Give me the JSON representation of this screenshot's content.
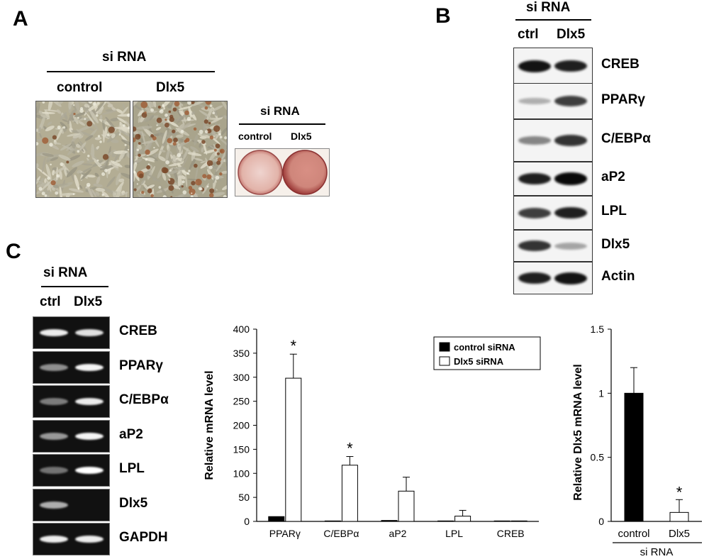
{
  "panel_a": {
    "letter": "A",
    "sirna_label": "si RNA",
    "col_control": "control",
    "col_dlx5": "Dlx5",
    "stain": {
      "sirna_label": "si RNA",
      "col_control": "control",
      "col_dlx5": "Dlx5"
    }
  },
  "panel_b": {
    "letter": "B",
    "sirna_label": "si RNA",
    "col_ctrl": "ctrl",
    "col_dlx5": "Dlx5",
    "rows": [
      {
        "label": "CREB",
        "ctrl": 0.9,
        "dlx5": 0.85
      },
      {
        "label": "PPARγ",
        "ctrl": 0.15,
        "dlx5": 0.7
      },
      {
        "label": "C/EBPα",
        "ctrl": 0.35,
        "dlx5": 0.75
      },
      {
        "label": "aP2",
        "ctrl": 0.85,
        "dlx5": 0.95
      },
      {
        "label": "LPL",
        "ctrl": 0.7,
        "dlx5": 0.85
      },
      {
        "label": "Dlx5",
        "ctrl": 0.75,
        "dlx5": 0.2
      },
      {
        "label": "Actin",
        "ctrl": 0.85,
        "dlx5": 0.9
      }
    ]
  },
  "panel_c": {
    "letter": "C",
    "sirna_label": "si RNA",
    "col_ctrl": "ctrl",
    "col_dlx5": "Dlx5",
    "gel_rows": [
      {
        "label": "CREB",
        "ctrl": 0.9,
        "dlx5": 0.85
      },
      {
        "label": "PPARγ",
        "ctrl": 0.45,
        "dlx5": 0.95
      },
      {
        "label": "C/EBPα",
        "ctrl": 0.35,
        "dlx5": 0.9
      },
      {
        "label": "aP2",
        "ctrl": 0.5,
        "dlx5": 0.95
      },
      {
        "label": "LPL",
        "ctrl": 0.3,
        "dlx5": 1.0
      },
      {
        "label": "Dlx5",
        "ctrl": 0.6,
        "dlx5": 0.0
      },
      {
        "label": "GAPDH",
        "ctrl": 0.9,
        "dlx5": 0.9
      }
    ]
  },
  "chart_data": [
    {
      "type": "bar",
      "categories": [
        "PPARγ",
        "C/EBPα",
        "aP2",
        "LPL",
        "CREB"
      ],
      "ylabel": "Relative mRNA level",
      "ylim": [
        0,
        400
      ],
      "yticks": [
        0,
        50,
        100,
        150,
        200,
        250,
        300,
        350,
        400
      ],
      "legend_position": "top-right",
      "series": [
        {
          "name": "control siRNA",
          "color": "#000000",
          "values": [
            10,
            1,
            2,
            1,
            1
          ],
          "errors": [
            0,
            0,
            0,
            0,
            0
          ]
        },
        {
          "name": "Dlx5 siRNA",
          "color": "#ffffff",
          "values": [
            298,
            117,
            63,
            11,
            1
          ],
          "errors": [
            50,
            18,
            29,
            12,
            0
          ]
        }
      ],
      "significance": [
        "*",
        "*",
        "",
        "",
        ""
      ]
    },
    {
      "type": "bar",
      "categories": [
        "control",
        "Dlx5"
      ],
      "xlabel": "si RNA",
      "ylabel": "Relative Dlx5 mRNA level",
      "ylim": [
        0,
        1.5
      ],
      "yticks": [
        0,
        0.5,
        1,
        1.5
      ],
      "ytick_labels": [
        "0",
        "0.5",
        "1",
        "1.5"
      ],
      "values": [
        1.0,
        0.07
      ],
      "errors": [
        0.2,
        0.1
      ],
      "colors": [
        "#000000",
        "#ffffff"
      ],
      "significance": [
        "",
        "*"
      ]
    }
  ]
}
